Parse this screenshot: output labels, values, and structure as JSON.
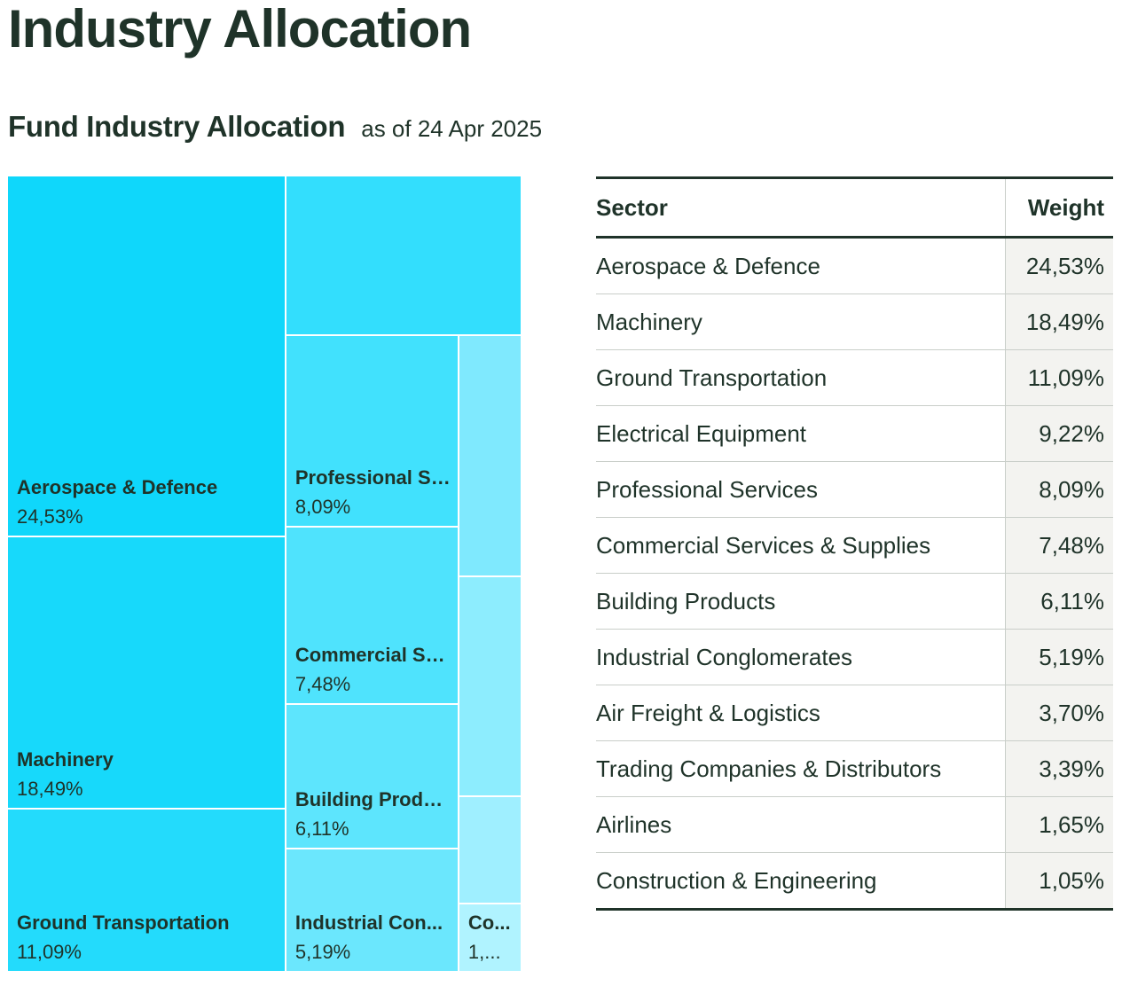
{
  "page": {
    "title": "Industry Allocation",
    "section_title": "Fund Industry Allocation",
    "as_of": "as of 24 Apr 2025"
  },
  "table": {
    "headers": {
      "sector": "Sector",
      "weight": "Weight"
    },
    "rows": [
      {
        "sector": "Aerospace & Defence",
        "weight": "24,53%"
      },
      {
        "sector": "Machinery",
        "weight": "18,49%"
      },
      {
        "sector": "Ground Transportation",
        "weight": "11,09%"
      },
      {
        "sector": "Electrical Equipment",
        "weight": "9,22%"
      },
      {
        "sector": "Professional Services",
        "weight": "8,09%"
      },
      {
        "sector": "Commercial Services & Supplies",
        "weight": "7,48%"
      },
      {
        "sector": "Building Products",
        "weight": "6,11%"
      },
      {
        "sector": "Industrial Conglomerates",
        "weight": "5,19%"
      },
      {
        "sector": "Air Freight & Logistics",
        "weight": "3,70%"
      },
      {
        "sector": "Trading Companies & Distributors",
        "weight": "3,39%"
      },
      {
        "sector": "Airlines",
        "weight": "1,65%"
      },
      {
        "sector": "Construction & Engineering",
        "weight": "1,05%"
      }
    ]
  },
  "chart_data": {
    "type": "treemap",
    "unit": "%",
    "items": [
      {
        "name": "Aerospace & Defence",
        "label": "Aerospace & Defence",
        "value": 24.53,
        "value_label": "24,53%",
        "color": "#0fd7fb"
      },
      {
        "name": "Machinery",
        "label": "Machinery",
        "value": 18.49,
        "value_label": "18,49%",
        "color": "#17d9fb"
      },
      {
        "name": "Ground Transportation",
        "label": "Ground Transportation",
        "value": 11.09,
        "value_label": "11,09%",
        "color": "#23dbfc"
      },
      {
        "name": "Electrical Equipment",
        "label": "",
        "value": 9.22,
        "value_label": "",
        "color": "#33defd"
      },
      {
        "name": "Professional Services",
        "label": "Professional Services",
        "value": 8.09,
        "value_label": "8,09%",
        "color": "#41e1fd"
      },
      {
        "name": "Commercial Services & Supplies",
        "label": "Commercial Services & Supplies",
        "value": 7.48,
        "value_label": "7,48%",
        "color": "#4fe3fd"
      },
      {
        "name": "Building Products",
        "label": "Building Products",
        "value": 6.11,
        "value_label": "6,11%",
        "color": "#5de5fd"
      },
      {
        "name": "Industrial Conglomerates",
        "label": "Industrial Con...",
        "value": 5.19,
        "value_label": "5,19%",
        "color": "#6be7fd"
      },
      {
        "name": "Air Freight & Logistics",
        "label": "",
        "value": 3.7,
        "value_label": "",
        "color": "#7fe9fe"
      },
      {
        "name": "Trading Companies & Distributors",
        "label": "",
        "value": 3.39,
        "value_label": "",
        "color": "#8dedfe"
      },
      {
        "name": "Airlines",
        "label": "",
        "value": 1.65,
        "value_label": "",
        "color": "#9fefff"
      },
      {
        "name": "Construction & Engineering",
        "label": "Co...",
        "value": 1.05,
        "value_label": "1,...",
        "color": "#b0f3ff"
      }
    ]
  }
}
